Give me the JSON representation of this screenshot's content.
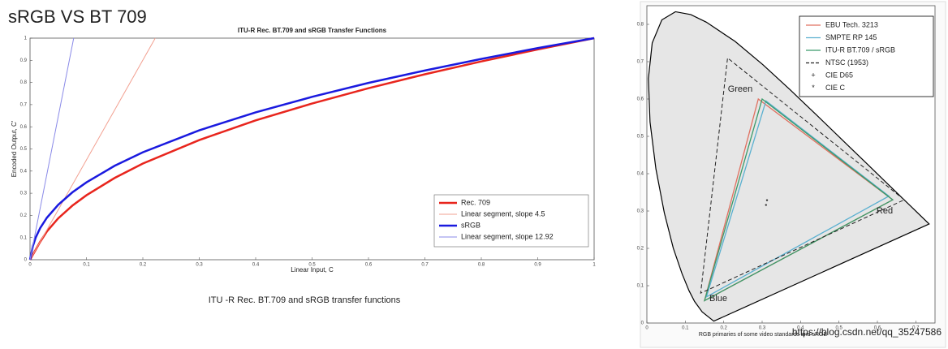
{
  "heading": "sRGB VS BT 709",
  "caption": "ITU -R Rec. BT.709 and sRGB transfer functions",
  "watermark": "https://blog.csdn.net/qq_35247586",
  "chart_data": [
    {
      "type": "line",
      "title": "ITU-R Rec. BT.709 and sRGB Transfer Functions",
      "xlabel": "Linear Input, C",
      "ylabel": "Encoded Output, C'",
      "xlim": [
        0,
        1
      ],
      "xticks": [
        0,
        0.1,
        0.2,
        0.3,
        0.4,
        0.5,
        0.6,
        0.7,
        0.8,
        0.9,
        1
      ],
      "ylim": [
        0,
        1
      ],
      "yticks": [
        0,
        0.1,
        0.2,
        0.3,
        0.4,
        0.5,
        0.6,
        0.7,
        0.8,
        0.9,
        1
      ],
      "legend": "lower right",
      "series": [
        {
          "name": "Rec. 709",
          "color": "#e8251d",
          "width": 2.5,
          "x": [
            0,
            0.005,
            0.01,
            0.018,
            0.03,
            0.05,
            0.075,
            0.1,
            0.15,
            0.2,
            0.3,
            0.4,
            0.5,
            0.6,
            0.7,
            0.8,
            0.9,
            1
          ],
          "values": [
            0,
            0.0225,
            0.045,
            0.081,
            0.128,
            0.187,
            0.244,
            0.291,
            0.369,
            0.434,
            0.54,
            0.629,
            0.705,
            0.774,
            0.837,
            0.895,
            0.949,
            1
          ]
        },
        {
          "name": "Linear segment, slope 4.5",
          "color": "#f2a090",
          "width": 1,
          "x": [
            0,
            0.222
          ],
          "values": [
            0,
            1
          ]
        },
        {
          "name": "sRGB",
          "color": "#1a1adf",
          "width": 2.5,
          "x": [
            0,
            0.005,
            0.01,
            0.018,
            0.03,
            0.05,
            0.075,
            0.1,
            0.15,
            0.2,
            0.3,
            0.4,
            0.5,
            0.6,
            0.7,
            0.8,
            0.9,
            1
          ],
          "values": [
            0,
            0.061,
            0.1,
            0.143,
            0.19,
            0.248,
            0.304,
            0.349,
            0.424,
            0.485,
            0.584,
            0.665,
            0.735,
            0.798,
            0.854,
            0.906,
            0.955,
            1
          ]
        },
        {
          "name": "Linear segment, slope 12.92",
          "color": "#8a8ae8",
          "width": 1,
          "x": [
            0,
            0.0774
          ],
          "values": [
            0,
            1
          ]
        }
      ]
    },
    {
      "type": "chromaticity",
      "xlabel": "RGB primaries of some video standards and sRGB",
      "xlim": [
        0,
        0.75
      ],
      "xticks": [
        0,
        0.1,
        0.2,
        0.3,
        0.4,
        0.5,
        0.6,
        0.7
      ],
      "ylim": [
        0,
        0.85
      ],
      "yticks": [
        0,
        0.1,
        0.2,
        0.3,
        0.4,
        0.5,
        0.6,
        0.7,
        0.8
      ],
      "legend": "upper right",
      "locus": {
        "x": [
          0.1741,
          0.144,
          0.1241,
          0.1096,
          0.0913,
          0.0687,
          0.0454,
          0.0235,
          0.0082,
          0.0039,
          0.0139,
          0.0389,
          0.0743,
          0.1142,
          0.1547,
          0.2296,
          0.3016,
          0.3731,
          0.4441,
          0.5125,
          0.5752,
          0.627,
          0.6915,
          0.7347
        ],
        "y": [
          0.005,
          0.0297,
          0.0578,
          0.0868,
          0.1327,
          0.2007,
          0.295,
          0.4127,
          0.5384,
          0.6548,
          0.7502,
          0.812,
          0.8338,
          0.8262,
          0.8059,
          0.7543,
          0.6923,
          0.6245,
          0.5547,
          0.4866,
          0.4242,
          0.3725,
          0.3083,
          0.2653
        ]
      },
      "series": [
        {
          "name": "EBU Tech. 3213",
          "color": "#e07060",
          "x": [
            0.64,
            0.29,
            0.15
          ],
          "values": [
            0.33,
            0.6,
            0.06
          ]
        },
        {
          "name": "SMPTE RP 145",
          "color": "#5ab0d0",
          "x": [
            0.63,
            0.31,
            0.155
          ],
          "values": [
            0.34,
            0.595,
            0.07
          ]
        },
        {
          "name": "ITU-R BT.709 / sRGB",
          "color": "#3a9a6a",
          "x": [
            0.64,
            0.3,
            0.15
          ],
          "values": [
            0.33,
            0.6,
            0.06
          ]
        },
        {
          "name": "NTSC (1953)",
          "color": "#222222",
          "dash": true,
          "x": [
            0.67,
            0.21,
            0.14
          ],
          "values": [
            0.33,
            0.71,
            0.08
          ]
        }
      ],
      "points": [
        {
          "name": "CIE D65",
          "marker": "+",
          "x": 0.3127,
          "y": 0.329
        },
        {
          "name": "CIE C",
          "marker": "*",
          "x": 0.3101,
          "y": 0.3162
        }
      ],
      "annotations": [
        "Green",
        "Red",
        "Blue"
      ]
    }
  ]
}
